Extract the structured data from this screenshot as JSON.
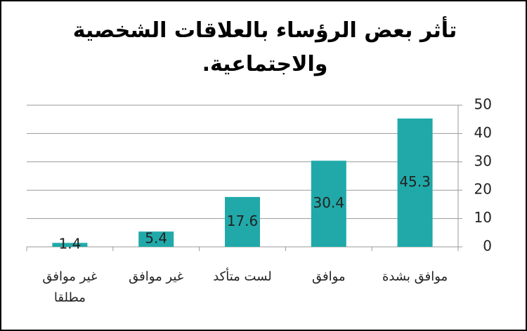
{
  "chart_data": {
    "type": "bar",
    "title": "تأثر بعض الرؤساء بالعلاقات الشخصية والاجتماعية.",
    "categories": [
      "غير موافق مطلقا",
      "غير موافق",
      "لست متأكد",
      "موافق",
      "موافق بشدة"
    ],
    "values": [
      1.4,
      5.4,
      17.6,
      30.4,
      45.3
    ],
    "color": "#21a9a9",
    "ylim": [
      0,
      50
    ],
    "yticks": [
      0,
      10,
      20,
      30,
      40,
      50
    ],
    "grid": true,
    "y_axis_side": "right"
  }
}
